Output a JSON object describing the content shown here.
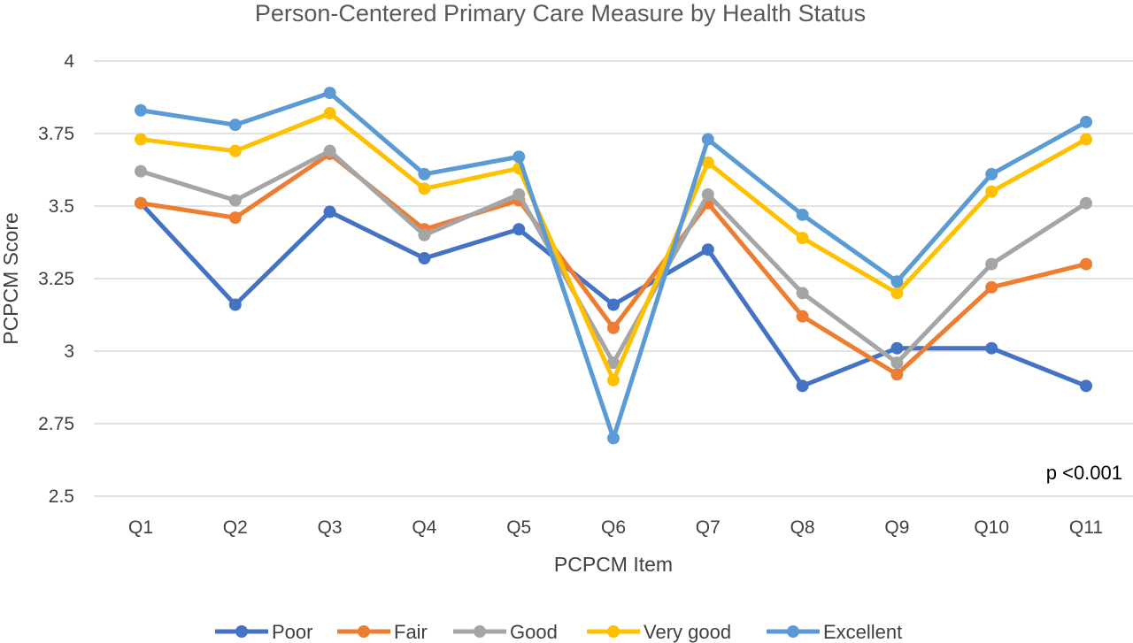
{
  "chart_data": {
    "type": "line",
    "title": "Person-Centered Primary Care Measure by Health Status",
    "xlabel": "PCPCM Item",
    "ylabel": "PCPCM Score",
    "categories": [
      "Q1",
      "Q2",
      "Q3",
      "Q4",
      "Q5",
      "Q6",
      "Q7",
      "Q8",
      "Q9",
      "Q10",
      "Q11"
    ],
    "ylim": [
      2.5,
      4
    ],
    "yticks": [
      "2.5",
      "2.75",
      "3",
      "3.25",
      "3.5",
      "3.75",
      "4"
    ],
    "grid": true,
    "legend_position": "bottom",
    "annotation": "p <0.001",
    "series": [
      {
        "name": "Poor",
        "color": "#4472C4",
        "values": [
          3.51,
          3.16,
          3.48,
          3.32,
          3.42,
          3.16,
          3.35,
          2.88,
          3.01,
          3.01,
          2.88
        ]
      },
      {
        "name": "Fair",
        "color": "#ED7D31",
        "values": [
          3.51,
          3.46,
          3.68,
          3.42,
          3.52,
          3.08,
          3.51,
          3.12,
          2.92,
          3.22,
          3.3
        ]
      },
      {
        "name": "Good",
        "color": "#A5A5A5",
        "values": [
          3.62,
          3.52,
          3.69,
          3.4,
          3.54,
          2.96,
          3.54,
          3.2,
          2.96,
          3.3,
          3.51
        ]
      },
      {
        "name": "Very good",
        "color": "#FFC000",
        "values": [
          3.73,
          3.69,
          3.82,
          3.56,
          3.63,
          2.9,
          3.65,
          3.39,
          3.2,
          3.55,
          3.73
        ]
      },
      {
        "name": "Excellent",
        "color": "#5B9BD5",
        "values": [
          3.83,
          3.78,
          3.89,
          3.61,
          3.67,
          2.7,
          3.73,
          3.47,
          3.24,
          3.61,
          3.79
        ]
      }
    ]
  }
}
